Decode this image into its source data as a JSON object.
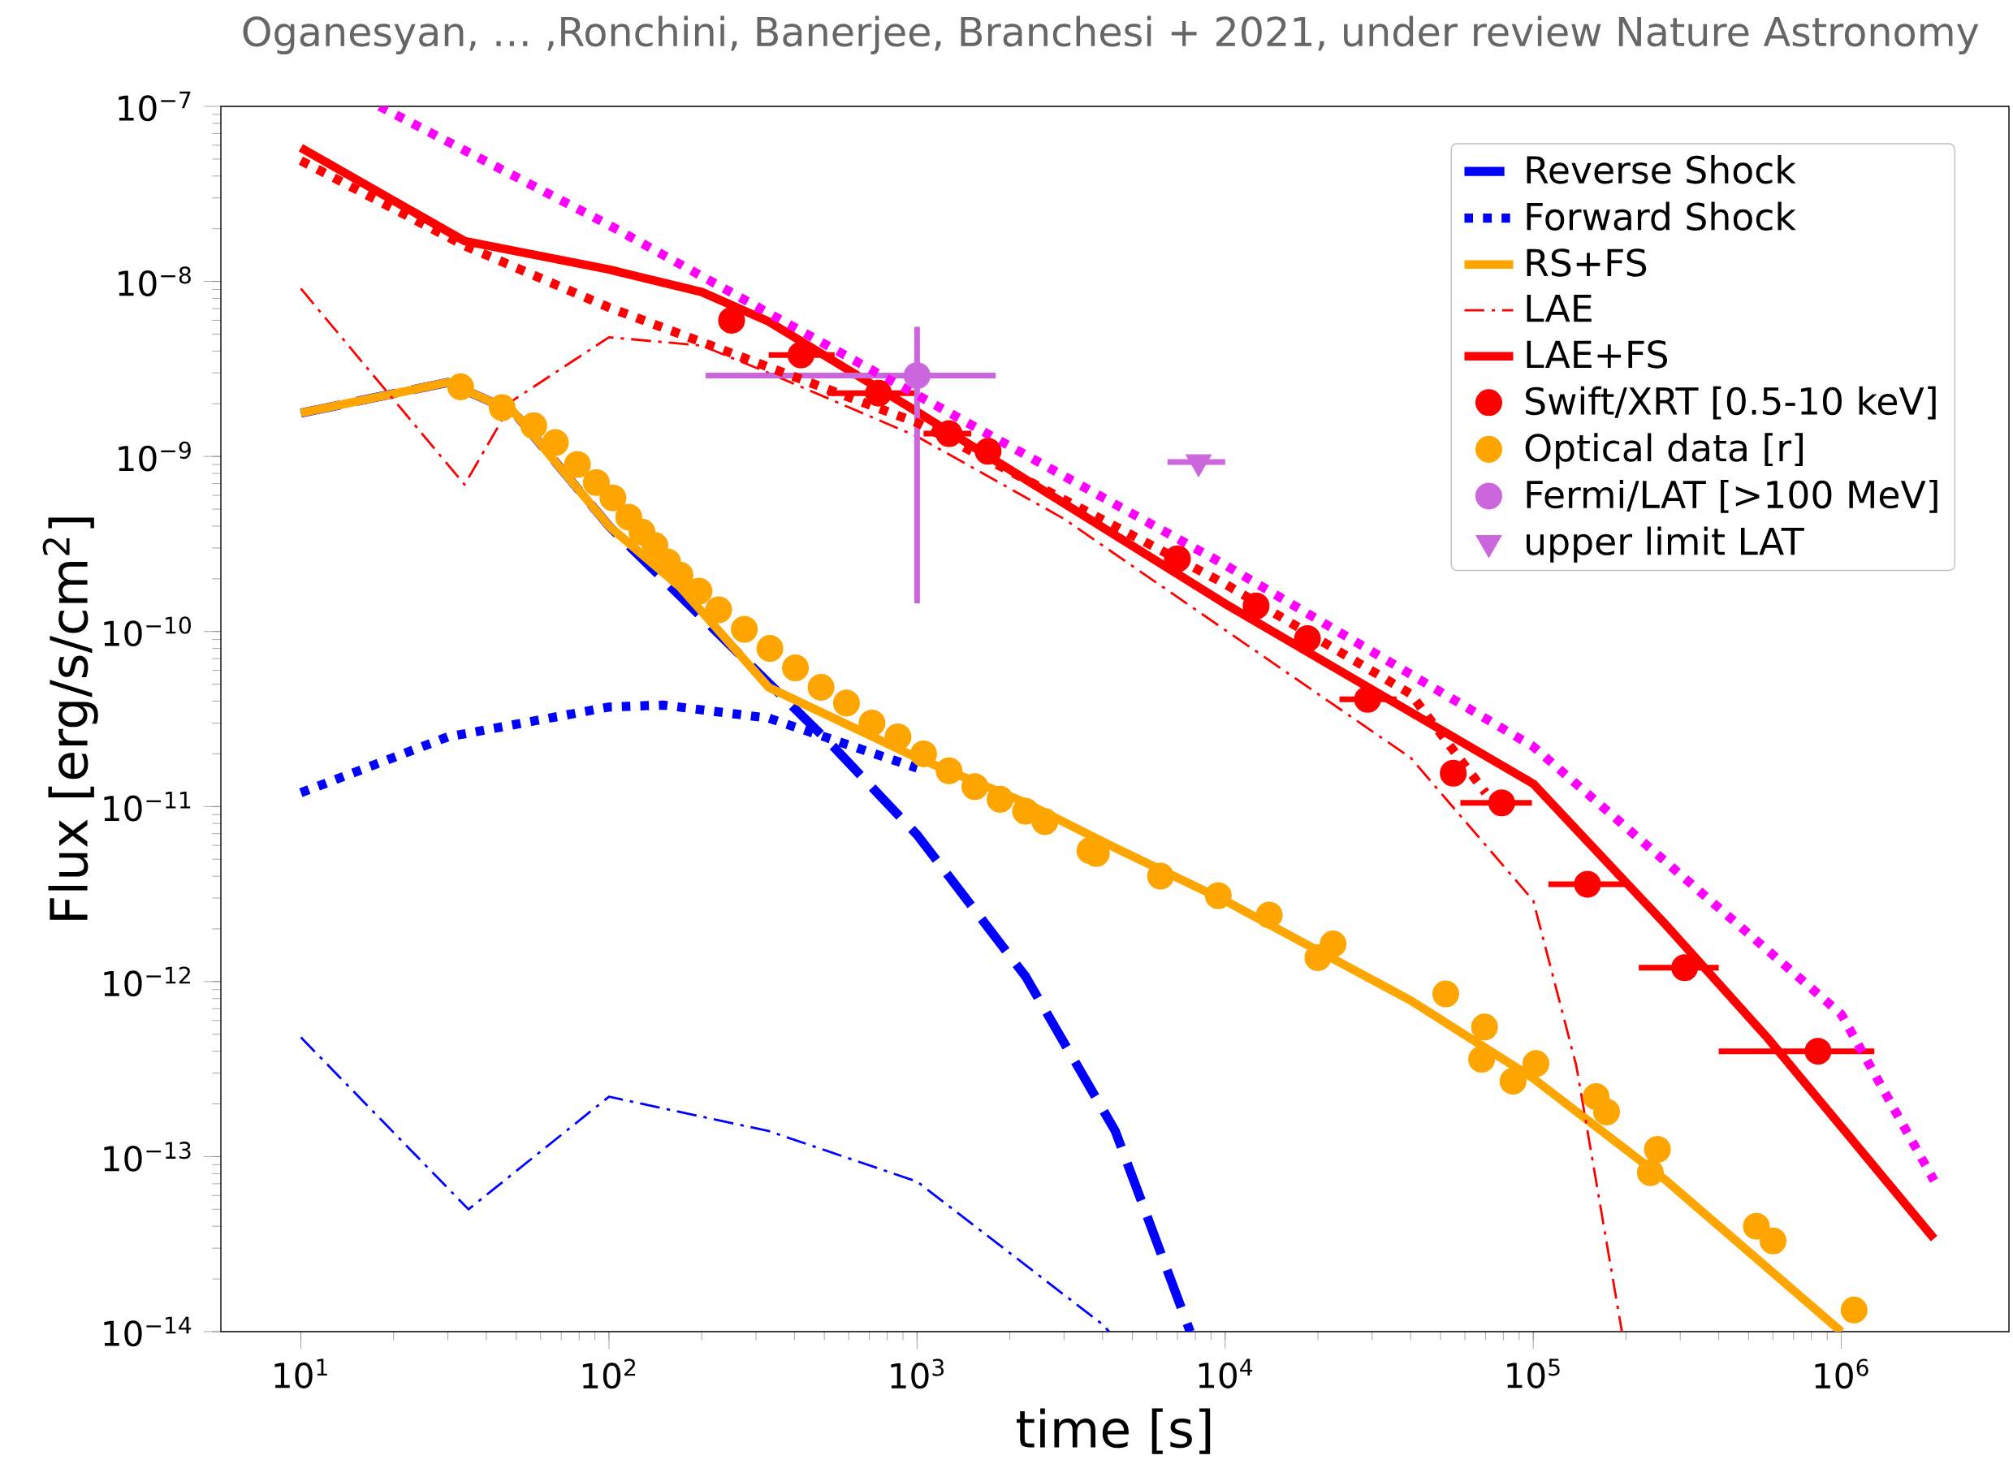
{
  "chart_data": {
    "type": "line",
    "xlabel": "time [s]",
    "ylabel": "Flux [erg/s/cm$^{2}$]",
    "log": "xy",
    "legend": "top right",
    "xlim": [
      5.5,
      3500000
    ],
    "ylim": [
      1e-14,
      1e-07
    ],
    "xticks": [
      {
        "value": 10,
        "label": "10$^{1}$"
      },
      {
        "value": 100,
        "label": "10$^{2}$"
      },
      {
        "value": 1000,
        "label": "10$^{3}$"
      },
      {
        "value": 10000,
        "label": "10$^{4}$"
      },
      {
        "value": 100000,
        "label": "10$^{5}$"
      },
      {
        "value": 1000000,
        "label": "10$^{6}$"
      }
    ],
    "yticks": [
      {
        "value": 1e-14,
        "label": "10$^{−14}$"
      },
      {
        "value": 1e-13,
        "label": "10$^{−13}$"
      },
      {
        "value": 1e-12,
        "label": "10$^{−12}$"
      },
      {
        "value": 1e-11,
        "label": "10$^{−11}$"
      },
      {
        "value": 1e-10,
        "label": "10$^{−10}$"
      },
      {
        "value": 1e-09,
        "label": "10$^{−9}$"
      },
      {
        "value": 1e-08,
        "label": "10$^{−8}$"
      },
      {
        "value": 1e-07,
        "label": "10$^{−7}$"
      }
    ],
    "annotations": [
      "Oganesyan, … ,Ronchini, Banerjee, Branchesi + 2021, under review Nature Astronomy"
    ],
    "series": [
      {
        "name": "Reverse Shock",
        "color": "#0000ff",
        "line_style": "dashed",
        "x": [
          10,
          30,
          49,
          100,
          170,
          535,
          1000,
          2250,
          4400,
          7700
        ],
        "values": [
          1.77e-09,
          2.65e-09,
          1.8e-09,
          4e-10,
          null,
          2.2e-11,
          6.9e-12,
          1.07e-12,
          1.4e-13,
          1e-14
        ]
      },
      {
        "name": "Forward Shock",
        "color": "#0000ff",
        "line_style": "dotted",
        "x": [
          10,
          30,
          100,
          150,
          330,
          1000
        ],
        "values": [
          1.2e-11,
          2.5e-11,
          3.7e-11,
          3.8e-11,
          3.2e-11,
          1.66e-11
        ]
      },
      {
        "name": "RS+FS",
        "color": "#ffa500",
        "line_style": "solid",
        "x": [
          10,
          30,
          49,
          100,
          170,
          330,
          1000,
          2250,
          4400,
          10000,
          40000,
          100000,
          270000,
          1000000
        ],
        "values": [
          1.77e-09,
          2.65e-09,
          1.8e-09,
          4e-10,
          1.8e-10,
          4.8e-11,
          1.9e-11,
          1.05e-11,
          5.8e-12,
          2.9e-12,
          7.8e-13,
          2.8e-13,
          7.3e-14,
          1e-14
        ]
      },
      {
        "name": "LAE",
        "color": "#ff0000",
        "line_style": "dashdot",
        "x": [
          10,
          34,
          49,
          100,
          200,
          330,
          1000,
          3000,
          10000,
          40000,
          100000,
          138000,
          194000
        ],
        "values": [
          9.1e-09,
          6.9e-10,
          2.1e-09,
          4.8e-09,
          4.3e-09,
          3e-09,
          1.3e-09,
          4.4e-10,
          1.02e-10,
          1.9e-11,
          2.9e-12,
          3.3e-13,
          1e-14
        ]
      },
      {
        "name": "LAE+FS",
        "color": "#ff0000",
        "line_style": "solid",
        "x": [
          10,
          34,
          100,
          200,
          330,
          1000,
          10000,
          100000,
          270000,
          580000,
          2000000
        ],
        "values": [
          5.8e-08,
          1.7e-08,
          1.17e-08,
          8.7e-09,
          5.9e-09,
          1.8e-09,
          1.44e-10,
          1.35e-11,
          2.1e-12,
          4.7e-13,
          3.4e-14
        ]
      },
      {
        "name": "Swift/XRT [0.5-10 keV]",
        "type": "scatter",
        "marker": "circle",
        "color": "#ff0000",
        "x": [
          250,
          420,
          750,
          1270,
          1700,
          7000,
          12600,
          18500,
          29000,
          55000,
          79000,
          150000,
          310000,
          840000
        ],
        "values": [
          6e-09,
          3.8e-09,
          2.3e-09,
          1.35e-09,
          1.07e-09,
          2.6e-10,
          1.4e-10,
          9.1e-11,
          4.1e-11,
          1.55e-11,
          1.05e-11,
          3.6e-12,
          1.2e-12,
          4e-13
        ],
        "xerrors": [
          null,
          [
            330,
            540
          ],
          [
            512,
            1000
          ],
          [
            1050,
            1500
          ],
          null,
          null,
          null,
          null,
          [
            23500,
            36000
          ],
          null,
          [
            58000,
            99000
          ],
          [
            112000,
            200000
          ],
          [
            220000,
            400000
          ],
          [
            400000,
            1280000
          ]
        ]
      },
      {
        "name": "Optical data [r]",
        "type": "scatter",
        "marker": "circle",
        "color": "#ffa500",
        "x": [
          33,
          45,
          57,
          67,
          79,
          91,
          103,
          116,
          128,
          141,
          155,
          170,
          196,
          227,
          275,
          333,
          403,
          488,
          590,
          714,
          867,
          1050,
          1270,
          1540,
          1860,
          2250,
          2600,
          3640,
          3820,
          6170,
          9500,
          13900,
          20000,
          22400,
          52000,
          69500,
          68000,
          86000,
          102000,
          160000,
          173000,
          240000,
          253000,
          530000,
          600000,
          1100000
        ],
        "values": [
          2.5e-09,
          1.9e-09,
          1.5e-09,
          1.2e-09,
          9e-10,
          7.1e-10,
          5.8e-10,
          4.5e-10,
          3.7e-10,
          3.1e-10,
          2.5e-10,
          2.1e-10,
          1.7e-10,
          1.33e-10,
          1.03e-10,
          8e-11,
          6.2e-11,
          4.8e-11,
          3.9e-11,
          3e-11,
          2.5e-11,
          2e-11,
          1.6e-11,
          1.3e-11,
          1.1e-11,
          9.4e-12,
          8.2e-12,
          5.6e-12,
          5.4e-12,
          4e-12,
          3.1e-12,
          2.4e-12,
          1.37e-12,
          1.64e-12,
          8.5e-13,
          5.5e-13,
          3.6e-13,
          2.7e-13,
          3.4e-13,
          2.2e-13,
          1.8e-13,
          8.1e-14,
          1.1e-13,
          4e-14,
          3.3e-14,
          1.33e-14
        ]
      },
      {
        "name": "Fermi/LAT [>100 MeV]",
        "type": "scatter",
        "marker": "circle",
        "color": "#cc66dd",
        "x": [
          1000
        ],
        "values": [
          2.9e-09
        ],
        "xerrors": [
          [
            206,
            1800
          ]
        ],
        "errors": [
          [
            1.45e-10,
            5.5e-09
          ]
        ]
      },
      {
        "name": "upper limit LAT",
        "type": "scatter",
        "marker": "triangle",
        "color": "#cc66dd",
        "x": [
          8200
        ],
        "values": [
          9.3e-10
        ],
        "xerrors": [
          [
            6500,
            10000
          ]
        ]
      },
      {
        "color": "#ff0000",
        "line_style": "dotted",
        "x": [
          10,
          34,
          100,
          1000,
          10000,
          40000,
          70000
        ],
        "values": [
          4.9e-08,
          1.6e-08,
          7.1e-09,
          1.56e-09,
          1.87e-10,
          4.4e-11,
          1.2e-11
        ]
      },
      {
        "color": "#ff00ff",
        "line_style": "dotted",
        "x": [
          18,
          100,
          1000,
          10000,
          100000,
          1000000,
          2000000
        ],
        "values": [
          1e-07,
          2.1e-08,
          null,
          2.4e-10,
          2.2e-11,
          6.5e-13,
          7.3e-14
        ]
      },
      {
        "color": "#0000ff",
        "line_style": "dashdot",
        "x": [
          10,
          35,
          100,
          330,
          1000,
          4000,
          4200
        ],
        "values": [
          4.8e-13,
          5e-14,
          2.2e-13,
          1.4e-13,
          7.2e-14,
          1.1e-14,
          1e-14
        ]
      }
    ]
  }
}
